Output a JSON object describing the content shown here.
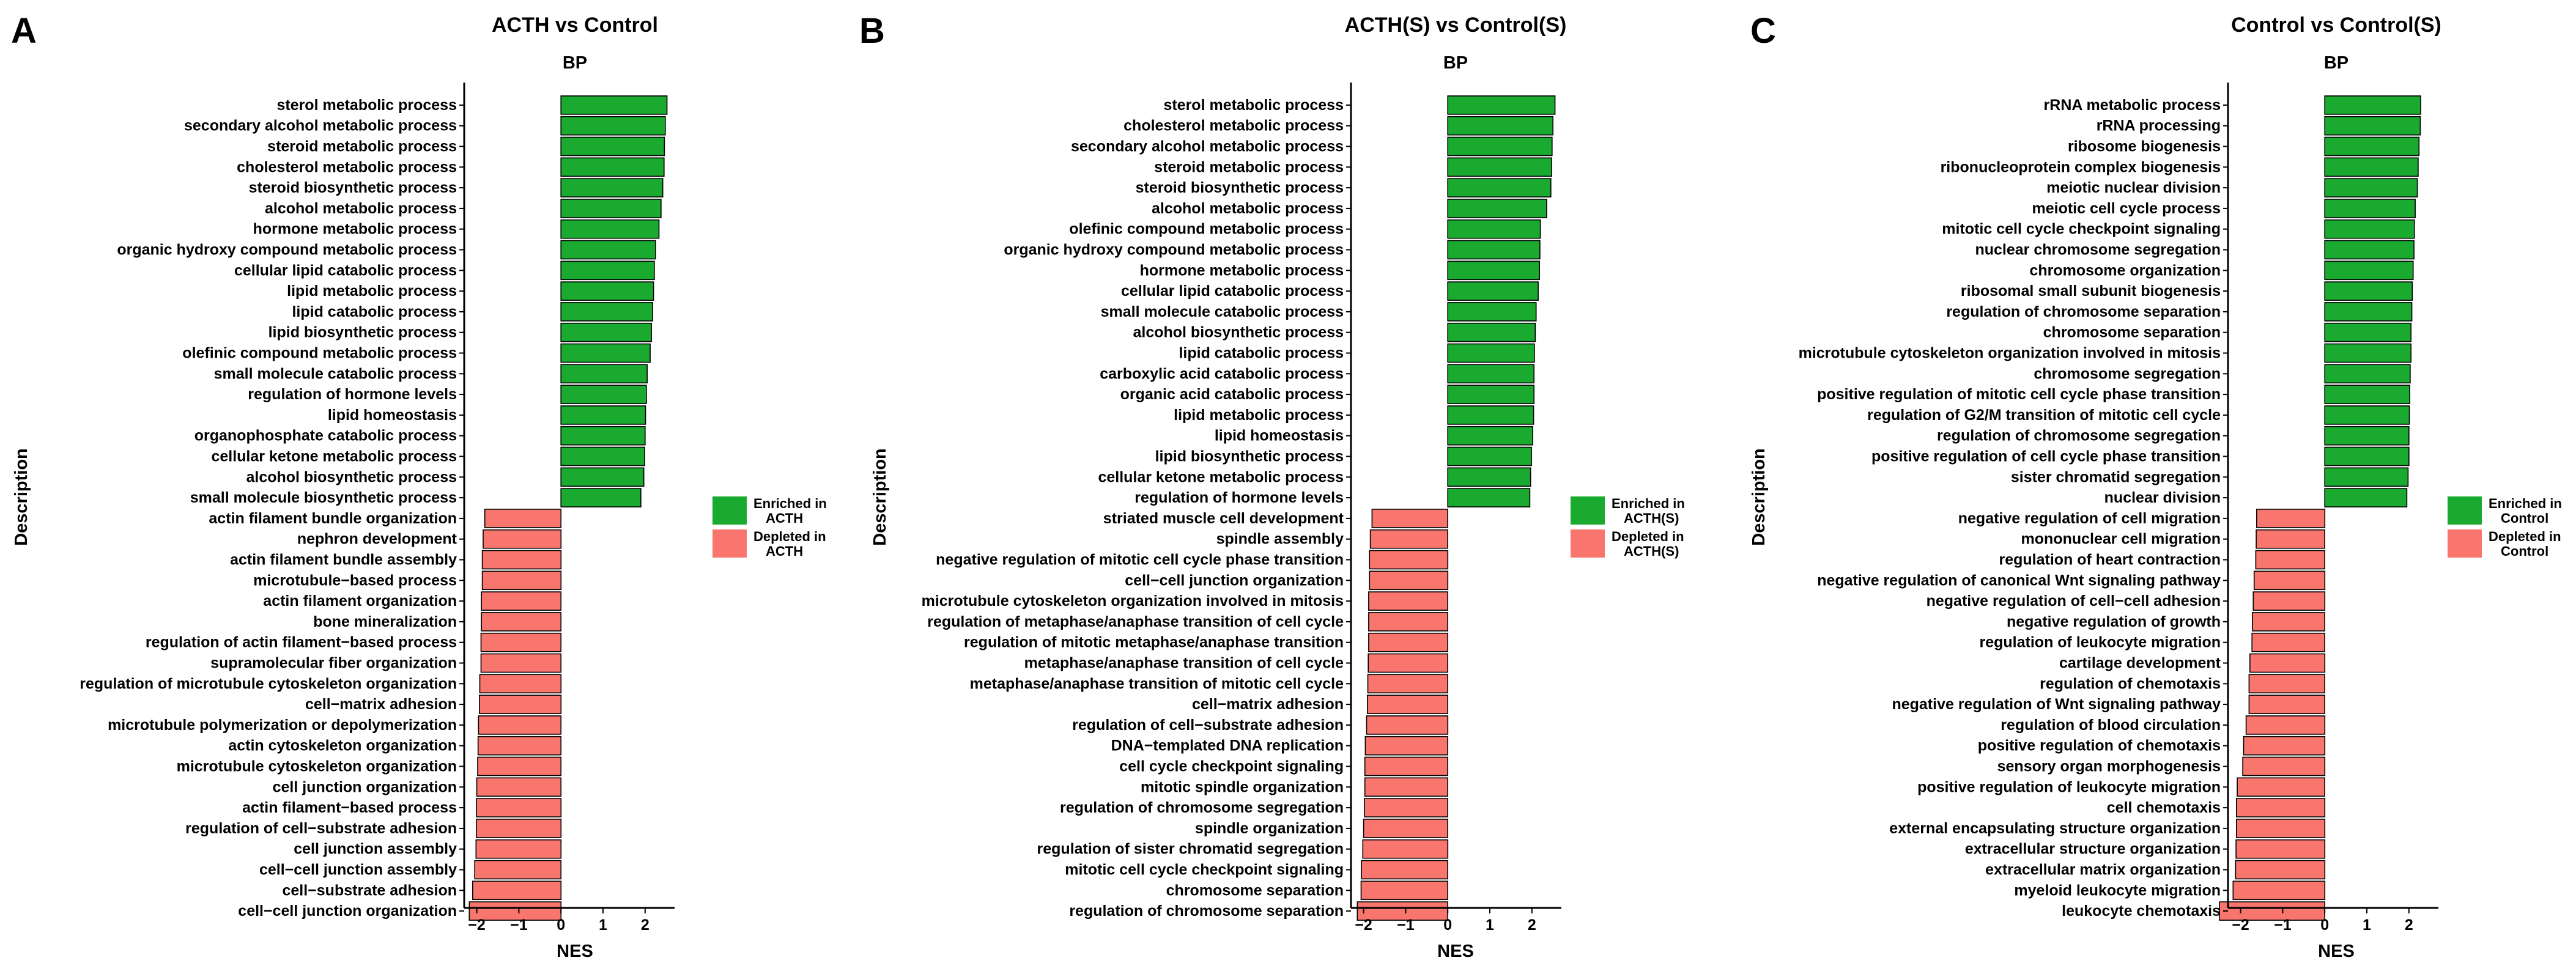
{
  "colors": {
    "enriched": "#1aaa2f",
    "depleted": "#f8766d",
    "bar_stroke": "#000000"
  },
  "chart_data": [
    {
      "type": "bar",
      "orientation": "horizontal",
      "panel_letter": "A",
      "title": "ACTH vs Control",
      "subtitle": "BP",
      "xlabel": "NES",
      "ylabel": "Description",
      "xlim": [
        -2.3,
        2.7
      ],
      "xticks": [
        -2,
        -1,
        0,
        1,
        2
      ],
      "xtick_labels": [
        "−2",
        "−1",
        "0",
        "1",
        "2"
      ],
      "legend": [
        "Enriched in ACTH",
        "Depleted in ACTH"
      ],
      "categories": [
        "sterol metabolic process",
        "secondary alcohol metabolic process",
        "steroid metabolic process",
        "cholesterol metabolic process",
        "steroid biosynthetic process",
        "alcohol metabolic process",
        "hormone metabolic process",
        "organic hydroxy compound metabolic process",
        "cellular lipid catabolic process",
        "lipid metabolic process",
        "lipid catabolic process",
        "lipid biosynthetic process",
        "olefinic compound metabolic process",
        "small molecule catabolic process",
        "regulation of hormone levels",
        "lipid homeostasis",
        "organophosphate catabolic process",
        "cellular ketone metabolic process",
        "alcohol biosynthetic process",
        "small molecule biosynthetic process",
        "actin filament bundle organization",
        "nephron development",
        "actin filament bundle assembly",
        "microtubule−based process",
        "actin filament organization",
        "bone mineralization",
        "regulation of actin filament−based process",
        "supramolecular fiber organization",
        "regulation of microtubule cytoskeleton organization",
        "cell−matrix adhesion",
        "microtubule polymerization or depolymerization",
        "actin cytoskeleton organization",
        "microtubule cytoskeleton organization",
        "cell junction organization",
        "actin filament−based process",
        "regulation of cell−substrate adhesion",
        "cell junction assembly",
        "cell−cell junction assembly",
        "cell−substrate adhesion",
        "cell−cell junction organization"
      ],
      "values": [
        2.52,
        2.48,
        2.46,
        2.45,
        2.42,
        2.38,
        2.33,
        2.25,
        2.22,
        2.2,
        2.18,
        2.15,
        2.12,
        2.05,
        2.03,
        2.01,
        2.0,
        1.99,
        1.97,
        1.9,
        -1.81,
        -1.85,
        -1.87,
        -1.87,
        -1.89,
        -1.89,
        -1.9,
        -1.9,
        -1.93,
        -1.94,
        -1.96,
        -1.97,
        -1.98,
        -2.0,
        -2.01,
        -2.01,
        -2.02,
        -2.05,
        -2.1,
        -2.18
      ]
    },
    {
      "type": "bar",
      "orientation": "horizontal",
      "panel_letter": "B",
      "title": "ACTH(S) vs Control(S)",
      "subtitle": "BP",
      "xlabel": "NES",
      "ylabel": "Description",
      "xlim": [
        -2.3,
        2.7
      ],
      "xticks": [
        -2,
        -1,
        0,
        1,
        2
      ],
      "xtick_labels": [
        "−2",
        "−1",
        "0",
        "1",
        "2"
      ],
      "legend": [
        "Enriched in ACTH(S)",
        "Depleted in ACTH(S)"
      ],
      "categories": [
        "sterol metabolic process",
        "cholesterol metabolic process",
        "secondary alcohol metabolic process",
        "steroid metabolic process",
        "steroid biosynthetic process",
        "alcohol metabolic process",
        "olefinic compound metabolic process",
        "organic hydroxy compound metabolic process",
        "hormone metabolic process",
        "cellular lipid catabolic process",
        "small molecule catabolic process",
        "alcohol biosynthetic process",
        "lipid catabolic process",
        "carboxylic acid catabolic process",
        "organic acid catabolic process",
        "lipid metabolic process",
        "lipid homeostasis",
        "lipid biosynthetic process",
        "cellular ketone metabolic process",
        "regulation of hormone levels",
        "striated muscle cell development",
        "spindle assembly",
        "negative regulation of mitotic cell cycle phase transition",
        "cell−cell junction organization",
        "microtubule cytoskeleton organization involved in mitosis",
        "regulation of metaphase/anaphase transition of cell cycle",
        "regulation of mitotic metaphase/anaphase transition",
        "metaphase/anaphase transition of cell cycle",
        "metaphase/anaphase transition of mitotic cell cycle",
        "cell−matrix adhesion",
        "regulation of cell−substrate adhesion",
        "DNA−templated DNA replication",
        "cell cycle checkpoint signaling",
        "mitotic spindle organization",
        "regulation of chromosome segregation",
        "spindle organization",
        "regulation of sister chromatid segregation",
        "mitotic cell cycle checkpoint signaling",
        "chromosome separation",
        "regulation of chromosome separation"
      ],
      "values": [
        2.55,
        2.5,
        2.48,
        2.47,
        2.45,
        2.35,
        2.2,
        2.19,
        2.18,
        2.15,
        2.1,
        2.08,
        2.06,
        2.05,
        2.05,
        2.04,
        2.02,
        1.99,
        1.97,
        1.95,
        -1.8,
        -1.84,
        -1.86,
        -1.86,
        -1.88,
        -1.88,
        -1.88,
        -1.89,
        -1.9,
        -1.91,
        -1.93,
        -1.96,
        -1.97,
        -1.97,
        -1.98,
        -2.0,
        -2.02,
        -2.05,
        -2.06,
        -2.15
      ]
    },
    {
      "type": "bar",
      "orientation": "horizontal",
      "panel_letter": "C",
      "title": "Control vs Control(S)",
      "subtitle": "BP",
      "xlabel": "NES",
      "ylabel": "Description",
      "xlim": [
        -2.3,
        2.7
      ],
      "xticks": [
        -2,
        -1,
        0,
        1,
        2
      ],
      "xtick_labels": [
        "−2",
        "−1",
        "0",
        "1",
        "2"
      ],
      "legend": [
        "Enriched in Control",
        "Depleted in Control"
      ],
      "categories": [
        "rRNA metabolic process",
        "rRNA processing",
        "ribosome biogenesis",
        "ribonucleoprotein complex biogenesis",
        "meiotic nuclear division",
        "meiotic cell cycle process",
        "mitotic cell cycle checkpoint signaling",
        "nuclear chromosome segregation",
        "chromosome organization",
        "ribosomal small subunit biogenesis",
        "regulation of chromosome separation",
        "chromosome separation",
        "microtubule cytoskeleton organization involved in mitosis",
        "chromosome segregation",
        "positive regulation of mitotic cell cycle phase transition",
        "regulation of G2/M transition of mitotic cell cycle",
        "regulation of chromosome segregation",
        "positive regulation of cell cycle phase transition",
        "sister chromatid segregation",
        "nuclear division",
        "negative regulation of cell migration",
        "mononuclear cell migration",
        "regulation of heart contraction",
        "negative regulation of canonical Wnt signaling pathway",
        "negative regulation of cell−cell adhesion",
        "negative regulation of growth",
        "regulation of leukocyte migration",
        "cartilage development",
        "regulation of chemotaxis",
        "negative regulation of Wnt signaling pathway",
        "regulation of blood circulation",
        "positive regulation of chemotaxis",
        "sensory organ morphogenesis",
        "positive regulation of leukocyte migration",
        "cell chemotaxis",
        "external encapsulating structure organization",
        "extracellular structure organization",
        "extracellular matrix organization",
        "myeloid leukocyte migration",
        "leukocyte chemotaxis"
      ],
      "values": [
        2.28,
        2.27,
        2.24,
        2.22,
        2.2,
        2.15,
        2.13,
        2.12,
        2.1,
        2.08,
        2.07,
        2.05,
        2.05,
        2.03,
        2.02,
        2.01,
        2.0,
        2.0,
        1.98,
        1.95,
        -1.62,
        -1.63,
        -1.64,
        -1.68,
        -1.7,
        -1.72,
        -1.73,
        -1.78,
        -1.8,
        -1.8,
        -1.87,
        -1.93,
        -1.95,
        -2.08,
        -2.1,
        -2.1,
        -2.11,
        -2.12,
        -2.18,
        -2.5
      ]
    }
  ]
}
